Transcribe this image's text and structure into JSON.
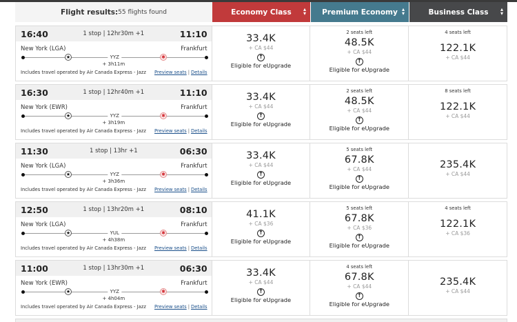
{
  "header": {
    "title_label": "Flight results:",
    "count_label": "55 flights found",
    "columns": [
      {
        "label": "Economy Class",
        "color": "#c13a3b",
        "sort_icon": "sort-icon"
      },
      {
        "label": "Premium Economy",
        "color": "#457a8e",
        "sort_icon": "sort-icon"
      },
      {
        "label": "Business Class",
        "color": "#47484a",
        "sort_icon": "sort-icon"
      }
    ]
  },
  "common": {
    "operated_by": "Includes travel operated by Air Canada Express - Jazz",
    "preview_seats": "Preview seats",
    "details": "Details",
    "link_separator": "|",
    "eupgrade_label": "Eligible for eUpgrade",
    "upgrade_icon": "↑",
    "origin_icon": "★",
    "dest_icon": "✱"
  },
  "flights": [
    {
      "depart": "16:40",
      "arrive": "11:10",
      "summary": "1 stop | 12hr30m +1",
      "origin": "New York (LGA)",
      "destination": "Frankfurt",
      "via": "YYZ",
      "layover": "+ 3h11m",
      "fares": [
        {
          "seats": "",
          "points": "33.4K",
          "tax": "+ CA $44",
          "eupgrade": true
        },
        {
          "seats": "2 seats left",
          "points": "48.5K",
          "tax": "+ CA $44",
          "eupgrade": true
        },
        {
          "seats": "4 seats left",
          "points": "122.1K",
          "tax": "+ CA $44",
          "eupgrade": false
        }
      ]
    },
    {
      "depart": "16:30",
      "arrive": "11:10",
      "summary": "1 stop | 12hr40m +1",
      "origin": "New York (EWR)",
      "destination": "Frankfurt",
      "via": "YYZ",
      "layover": "+ 3h19m",
      "fares": [
        {
          "seats": "",
          "points": "33.4K",
          "tax": "+ CA $44",
          "eupgrade": true
        },
        {
          "seats": "2 seats left",
          "points": "48.5K",
          "tax": "+ CA $44",
          "eupgrade": true
        },
        {
          "seats": "8 seats left",
          "points": "122.1K",
          "tax": "+ CA $44",
          "eupgrade": false
        }
      ]
    },
    {
      "depart": "11:30",
      "arrive": "06:30",
      "summary": "1 stop | 13hr +1",
      "origin": "New York (LGA)",
      "destination": "Frankfurt",
      "via": "YYZ",
      "layover": "+ 3h36m",
      "fares": [
        {
          "seats": "",
          "points": "33.4K",
          "tax": "+ CA $44",
          "eupgrade": true
        },
        {
          "seats": "5 seats left",
          "points": "67.8K",
          "tax": "+ CA $44",
          "eupgrade": true
        },
        {
          "seats": "",
          "points": "235.4K",
          "tax": "+ CA $44",
          "eupgrade": false
        }
      ]
    },
    {
      "depart": "12:50",
      "arrive": "08:10",
      "summary": "1 stop | 13hr20m +1",
      "origin": "New York (LGA)",
      "destination": "Frankfurt",
      "via": "YUL",
      "layover": "+ 4h38m",
      "fares": [
        {
          "seats": "",
          "points": "41.1K",
          "tax": "+ CA $36",
          "eupgrade": true
        },
        {
          "seats": "5 seats left",
          "points": "67.8K",
          "tax": "+ CA $36",
          "eupgrade": true
        },
        {
          "seats": "4 seats left",
          "points": "122.1K",
          "tax": "+ CA $36",
          "eupgrade": false
        }
      ]
    },
    {
      "depart": "11:00",
      "arrive": "06:30",
      "summary": "1 stop | 13hr30m +1",
      "origin": "New York (EWR)",
      "destination": "Frankfurt",
      "via": "YYZ",
      "layover": "+ 4h04m",
      "fares": [
        {
          "seats": "",
          "points": "33.4K",
          "tax": "+ CA $44",
          "eupgrade": true
        },
        {
          "seats": "4 seats left",
          "points": "67.8K",
          "tax": "+ CA $44",
          "eupgrade": true
        },
        {
          "seats": "",
          "points": "235.4K",
          "tax": "+ CA $44",
          "eupgrade": false
        }
      ]
    }
  ]
}
